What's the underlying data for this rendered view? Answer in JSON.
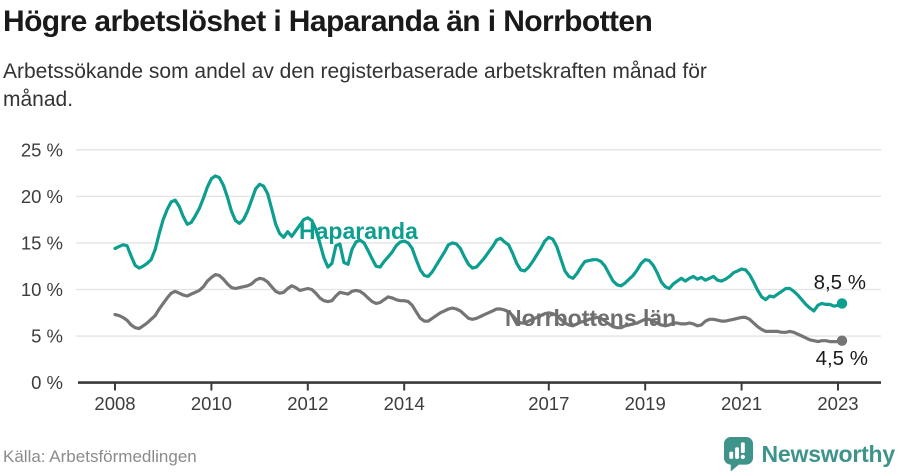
{
  "header": {
    "title": "Högre arbetslöshet i Haparanda än i Norrbotten",
    "subtitle": "Arbetssökande som andel av den registerbaserade arbetskraften månad för månad.",
    "subtitle_lines": [
      "Arbetssökande som andel av den registerbaserade arbetskraften månad för",
      "månad."
    ]
  },
  "footer": {
    "source": "Källa: Arbetsförmedlingen",
    "brand": "Newsworthy"
  },
  "colors": {
    "haparanda": "#0d9e90",
    "norrbotten": "#757575",
    "grid": "#e3e3e3",
    "axis": "#3a3a3a",
    "text": "#1a1a1a",
    "muted": "#8b8b8b",
    "brand": "#3e948b"
  },
  "chart_data": {
    "type": "line",
    "title": "Högre arbetslöshet i Haparanda än i Norrbotten",
    "subtitle": "Arbetssökande som andel av den registerbaserade arbetskraften månad för månad.",
    "xlabel": "",
    "ylabel": "",
    "y_unit": "%",
    "ylim": [
      0,
      25
    ],
    "grid": true,
    "legend_position": "inline-labels",
    "x_start": "2008-01",
    "x_end": "2023-02",
    "x_interval": "monthly",
    "y_ticks": [
      0,
      5,
      10,
      15,
      20,
      25
    ],
    "y_tick_labels": [
      "0 %",
      "5 %",
      "10 %",
      "15 %",
      "20 %",
      "25 %"
    ],
    "x_ticks": [
      {
        "label": "2008",
        "month_index": 0
      },
      {
        "label": "2010",
        "month_index": 24
      },
      {
        "label": "2012",
        "month_index": 48
      },
      {
        "label": "2014",
        "month_index": 72
      },
      {
        "label": "2017",
        "month_index": 108
      },
      {
        "label": "2019",
        "month_index": 132
      },
      {
        "label": "2021",
        "month_index": 156
      },
      {
        "label": "2023",
        "month_index": 180
      }
    ],
    "series": [
      {
        "name": "Haparanda",
        "color": "#0d9e90",
        "end_label": "8,5 %",
        "end_value": 8.5,
        "values": [
          14.4,
          14.6,
          14.8,
          14.7,
          13.6,
          12.6,
          12.3,
          12.5,
          12.8,
          13.2,
          14.3,
          16.0,
          17.5,
          18.6,
          19.4,
          19.6,
          18.9,
          17.8,
          17.0,
          17.2,
          17.9,
          18.7,
          19.8,
          21.0,
          21.9,
          22.2,
          22.0,
          21.2,
          19.9,
          18.4,
          17.4,
          17.1,
          17.5,
          18.4,
          19.6,
          20.8,
          21.3,
          21.1,
          20.3,
          18.7,
          17.0,
          16.0,
          15.6,
          16.2,
          15.7,
          16.3,
          16.9,
          17.5,
          17.7,
          17.4,
          16.5,
          15.0,
          13.4,
          12.4,
          12.8,
          14.7,
          14.9,
          12.9,
          12.7,
          14.3,
          15.1,
          15.3,
          15.0,
          14.2,
          13.3,
          12.5,
          12.4,
          13.0,
          13.5,
          14.0,
          14.7,
          15.1,
          15.2,
          15.0,
          14.4,
          13.2,
          12.1,
          11.5,
          11.4,
          11.9,
          12.6,
          13.3,
          14.0,
          14.8,
          15.0,
          14.9,
          14.4,
          13.5,
          12.7,
          12.3,
          12.4,
          12.9,
          13.4,
          14.0,
          14.6,
          15.3,
          15.5,
          15.1,
          14.8,
          13.9,
          12.8,
          12.1,
          12.0,
          12.4,
          13.0,
          13.7,
          14.4,
          15.2,
          15.6,
          15.4,
          14.6,
          13.3,
          12.0,
          11.4,
          11.2,
          11.7,
          12.4,
          13.0,
          13.1,
          13.2,
          13.2,
          13.0,
          12.5,
          11.7,
          10.9,
          10.5,
          10.4,
          10.7,
          11.1,
          11.5,
          12.1,
          12.8,
          13.2,
          13.1,
          12.6,
          11.8,
          10.8,
          10.3,
          10.1,
          10.6,
          10.9,
          11.2,
          10.9,
          11.2,
          11.4,
          11.1,
          11.3,
          11.0,
          11.2,
          11.4,
          11.0,
          10.9,
          11.1,
          11.4,
          11.8,
          12.0,
          12.2,
          12.1,
          11.6,
          10.8,
          9.9,
          9.2,
          8.9,
          9.3,
          9.2,
          9.5,
          9.8,
          10.1,
          10.1,
          9.8,
          9.4,
          8.9,
          8.4,
          8.0,
          7.7,
          8.3,
          8.5,
          8.4,
          8.4,
          8.2,
          8.3,
          8.5
        ]
      },
      {
        "name": "Norrbottens län",
        "color": "#757575",
        "end_label": "4,5 %",
        "end_value": 4.5,
        "values": [
          7.3,
          7.2,
          7.0,
          6.7,
          6.2,
          5.9,
          5.8,
          6.1,
          6.4,
          6.8,
          7.2,
          7.9,
          8.5,
          9.1,
          9.6,
          9.8,
          9.6,
          9.4,
          9.3,
          9.5,
          9.7,
          9.9,
          10.3,
          10.9,
          11.3,
          11.6,
          11.5,
          11.1,
          10.6,
          10.2,
          10.1,
          10.2,
          10.3,
          10.4,
          10.6,
          11.0,
          11.2,
          11.1,
          10.8,
          10.3,
          9.8,
          9.6,
          9.7,
          10.1,
          10.4,
          10.2,
          9.9,
          10.0,
          10.1,
          10.0,
          9.6,
          9.1,
          8.8,
          8.7,
          8.8,
          9.3,
          9.7,
          9.6,
          9.5,
          9.8,
          9.9,
          9.8,
          9.5,
          9.1,
          8.7,
          8.5,
          8.6,
          8.9,
          9.2,
          9.1,
          8.9,
          8.8,
          8.8,
          8.7,
          8.3,
          7.6,
          6.9,
          6.6,
          6.6,
          6.9,
          7.2,
          7.5,
          7.7,
          7.9,
          8.0,
          7.9,
          7.7,
          7.3,
          6.9,
          6.8,
          6.9,
          7.1,
          7.3,
          7.5,
          7.7,
          7.9,
          7.9,
          7.8,
          7.6,
          7.2,
          6.7,
          6.4,
          6.4,
          6.6,
          6.8,
          7.0,
          7.2,
          7.4,
          7.5,
          7.4,
          7.2,
          6.8,
          6.4,
          6.2,
          6.1,
          6.3,
          6.5,
          6.6,
          6.8,
          6.9,
          7.0,
          6.9,
          6.6,
          6.3,
          6.0,
          5.9,
          5.9,
          6.1,
          6.2,
          6.3,
          6.4,
          6.6,
          6.8,
          6.8,
          6.6,
          6.4,
          6.2,
          6.1,
          6.2,
          6.4,
          6.4,
          6.3,
          6.3,
          6.4,
          6.3,
          6.1,
          6.2,
          6.6,
          6.8,
          6.8,
          6.7,
          6.6,
          6.6,
          6.7,
          6.8,
          6.9,
          7.0,
          7.0,
          6.8,
          6.4,
          6.0,
          5.7,
          5.5,
          5.5,
          5.5,
          5.5,
          5.4,
          5.4,
          5.5,
          5.4,
          5.2,
          5.0,
          4.8,
          4.6,
          4.5,
          4.4,
          4.5,
          4.5,
          4.4,
          4.4,
          4.4,
          4.5
        ]
      }
    ]
  }
}
